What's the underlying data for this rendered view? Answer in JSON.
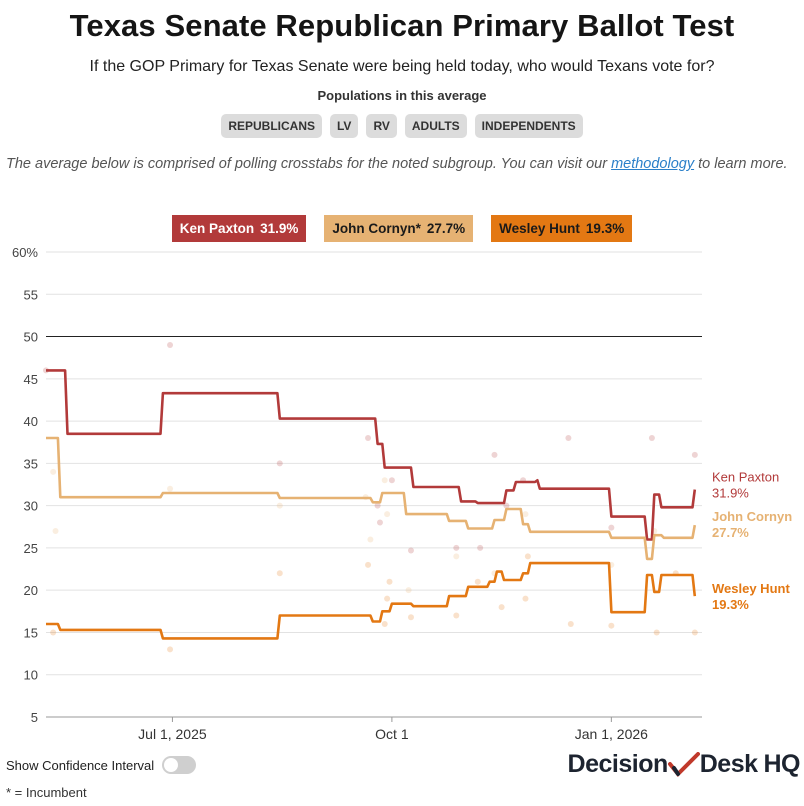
{
  "header": {
    "title": "Texas Senate Republican Primary Ballot Test",
    "subtitle": "If the GOP Primary for Texas Senate were being held today, who would Texans vote for?",
    "populations_label": "Populations in this average",
    "populations": [
      "REPUBLICANS",
      "LV",
      "RV",
      "ADULTS",
      "INDEPENDENTS"
    ]
  },
  "note": {
    "before": "The average below is comprised of polling crosstabs for the noted subgroup. You can visit our ",
    "link": "methodology",
    "after": " to learn more."
  },
  "legend": [
    {
      "name": "Ken Paxton",
      "value": "31.9%",
      "bg": "#b23a3a",
      "fg": "#ffffff"
    },
    {
      "name": "John Cornyn*",
      "value": "27.7%",
      "bg": "#e6b273",
      "fg": "#1a1a1a"
    },
    {
      "name": "Wesley Hunt",
      "value": "19.3%",
      "bg": "#e37813",
      "fg": "#1a1a1a"
    }
  ],
  "controls": {
    "ci_label": "Show Confidence Interval",
    "footnote": "* = Incumbent"
  },
  "brand": {
    "part1": "Decision",
    "part2": "Desk",
    "part3": "HQ"
  },
  "chart_data": {
    "type": "line",
    "y_ticks": [
      5,
      10,
      15,
      20,
      25,
      30,
      35,
      40,
      45,
      50,
      55,
      60
    ],
    "y_tick_labels": [
      "5",
      "10",
      "15",
      "20",
      "25",
      "30",
      "35",
      "40",
      "45",
      "50",
      "55",
      "60%"
    ],
    "ylim": [
      5,
      60
    ],
    "reference_line": 50,
    "x_domain": [
      "2025-05-09",
      "2026-02-08"
    ],
    "x_ticks": [
      {
        "date": "2025-07-01",
        "label": "Jul 1, 2025"
      },
      {
        "date": "2025-10-01",
        "label": "Oct 1"
      },
      {
        "date": "2026-01-01",
        "label": "Jan 1, 2026"
      }
    ],
    "series": [
      {
        "name": "Ken Paxton",
        "end_label": "Ken Paxton",
        "end_value": "31.9%",
        "color": "#b23a3a",
        "points": [
          [
            "2025-05-09",
            46
          ],
          [
            "2025-05-17",
            46
          ],
          [
            "2025-05-18",
            38.5
          ],
          [
            "2025-06-26",
            38.5
          ],
          [
            "2025-06-27",
            43.3
          ],
          [
            "2025-08-14",
            43.3
          ],
          [
            "2025-08-15",
            40.3
          ],
          [
            "2025-09-24",
            40.3
          ],
          [
            "2025-09-25",
            37.3
          ],
          [
            "2025-09-27",
            37.3
          ],
          [
            "2025-09-28",
            34.5
          ],
          [
            "2025-10-09",
            34.5
          ],
          [
            "2025-10-10",
            32.2
          ],
          [
            "2025-10-29",
            32.2
          ],
          [
            "2025-10-30",
            30.5
          ],
          [
            "2025-11-05",
            30.5
          ],
          [
            "2025-11-06",
            30.3
          ],
          [
            "2025-11-17",
            30.3
          ],
          [
            "2025-11-18",
            31.8
          ],
          [
            "2025-11-21",
            31.8
          ],
          [
            "2025-11-22",
            32.8
          ],
          [
            "2025-11-30",
            32.8
          ],
          [
            "2025-12-01",
            33
          ],
          [
            "2025-12-02",
            32
          ],
          [
            "2025-12-31",
            32
          ],
          [
            "2026-01-01",
            28.7
          ],
          [
            "2026-01-15",
            28.7
          ],
          [
            "2026-01-16",
            26
          ],
          [
            "2026-01-18",
            26
          ],
          [
            "2026-01-19",
            31.3
          ],
          [
            "2026-01-21",
            31.3
          ],
          [
            "2026-01-22",
            29.8
          ],
          [
            "2026-02-04",
            29.8
          ],
          [
            "2026-02-05",
            31.9
          ]
        ]
      },
      {
        "name": "John Cornyn*",
        "end_label": "John Cornyn",
        "end_value": "27.7%",
        "color": "#e6b273",
        "points": [
          [
            "2025-05-09",
            38
          ],
          [
            "2025-05-14",
            38
          ],
          [
            "2025-05-15",
            31
          ],
          [
            "2025-06-26",
            31
          ],
          [
            "2025-06-27",
            31.5
          ],
          [
            "2025-08-14",
            31.5
          ],
          [
            "2025-08-15",
            30.9
          ],
          [
            "2025-09-22",
            30.9
          ],
          [
            "2025-09-23",
            30.4
          ],
          [
            "2025-09-26",
            30.4
          ],
          [
            "2025-09-27",
            31.5
          ],
          [
            "2025-10-06",
            31.5
          ],
          [
            "2025-10-07",
            29
          ],
          [
            "2025-10-24",
            29
          ],
          [
            "2025-10-25",
            28.2
          ],
          [
            "2025-11-01",
            28.2
          ],
          [
            "2025-11-02",
            27.3
          ],
          [
            "2025-11-12",
            27.3
          ],
          [
            "2025-11-13",
            28.3
          ],
          [
            "2025-11-17",
            28.3
          ],
          [
            "2025-11-18",
            29.6
          ],
          [
            "2025-11-24",
            29.6
          ],
          [
            "2025-11-25",
            27.8
          ],
          [
            "2025-11-27",
            27.8
          ],
          [
            "2025-11-28",
            26.9
          ],
          [
            "2025-12-31",
            26.9
          ],
          [
            "2026-01-01",
            26.2
          ],
          [
            "2026-01-15",
            26.2
          ],
          [
            "2026-01-16",
            23.7
          ],
          [
            "2026-01-18",
            23.7
          ],
          [
            "2026-01-19",
            26.5
          ],
          [
            "2026-01-22",
            26.5
          ],
          [
            "2026-01-23",
            26.2
          ],
          [
            "2026-02-04",
            26.2
          ],
          [
            "2026-02-05",
            27.7
          ]
        ]
      },
      {
        "name": "Wesley Hunt",
        "end_label": "Wesley Hunt",
        "end_value": "19.3%",
        "color": "#e37813",
        "points": [
          [
            "2025-05-09",
            16
          ],
          [
            "2025-05-14",
            16
          ],
          [
            "2025-05-15",
            15.3
          ],
          [
            "2025-06-26",
            15.3
          ],
          [
            "2025-06-27",
            14.3
          ],
          [
            "2025-08-14",
            14.3
          ],
          [
            "2025-08-15",
            17
          ],
          [
            "2025-09-22",
            17
          ],
          [
            "2025-09-23",
            16.3
          ],
          [
            "2025-09-26",
            16.3
          ],
          [
            "2025-09-27",
            17.5
          ],
          [
            "2025-09-30",
            17.5
          ],
          [
            "2025-10-01",
            18.4
          ],
          [
            "2025-10-09",
            18.4
          ],
          [
            "2025-10-10",
            18.1
          ],
          [
            "2025-10-24",
            18.1
          ],
          [
            "2025-10-25",
            19.3
          ],
          [
            "2025-11-01",
            19.3
          ],
          [
            "2025-11-02",
            20.4
          ],
          [
            "2025-11-10",
            20.4
          ],
          [
            "2025-11-11",
            21
          ],
          [
            "2025-11-13",
            21
          ],
          [
            "2025-11-14",
            22.2
          ],
          [
            "2025-11-16",
            22.2
          ],
          [
            "2025-11-17",
            21.2
          ],
          [
            "2025-11-24",
            21.2
          ],
          [
            "2025-11-25",
            22
          ],
          [
            "2025-11-27",
            22
          ],
          [
            "2025-11-28",
            23.2
          ],
          [
            "2025-12-31",
            23.2
          ],
          [
            "2026-01-01",
            17.4
          ],
          [
            "2026-01-15",
            17.4
          ],
          [
            "2026-01-16",
            21.8
          ],
          [
            "2026-01-18",
            21.8
          ],
          [
            "2026-01-19",
            19.8
          ],
          [
            "2026-01-21",
            19.8
          ],
          [
            "2026-01-22",
            21.8
          ],
          [
            "2026-02-04",
            21.8
          ],
          [
            "2026-02-05",
            19.3
          ]
        ]
      }
    ],
    "polls": [
      [
        "2025-05-09",
        46,
        0
      ],
      [
        "2025-05-12",
        34,
        1
      ],
      [
        "2025-05-13",
        27,
        1
      ],
      [
        "2025-05-12",
        15,
        2
      ],
      [
        "2025-06-30",
        49,
        0
      ],
      [
        "2025-06-30",
        32,
        1
      ],
      [
        "2025-06-30",
        13,
        2
      ],
      [
        "2025-08-15",
        35,
        0
      ],
      [
        "2025-08-15",
        30,
        1
      ],
      [
        "2025-08-15",
        22,
        2
      ],
      [
        "2025-09-21",
        38,
        0
      ],
      [
        "2025-09-20",
        31,
        1
      ],
      [
        "2025-09-22",
        26,
        1
      ],
      [
        "2025-09-21",
        23,
        2
      ],
      [
        "2025-09-25",
        30,
        0
      ],
      [
        "2025-09-26",
        28,
        0
      ],
      [
        "2025-09-28",
        33,
        1
      ],
      [
        "2025-09-29",
        29,
        1
      ],
      [
        "2025-09-29",
        19,
        2
      ],
      [
        "2025-09-30",
        21,
        2
      ],
      [
        "2025-10-01",
        33,
        0
      ],
      [
        "2025-09-28",
        16,
        2
      ],
      [
        "2025-10-09",
        24.7,
        0
      ],
      [
        "2025-10-08",
        20,
        1
      ],
      [
        "2025-10-09",
        16.8,
        2
      ],
      [
        "2025-10-28",
        25,
        0
      ],
      [
        "2025-10-28",
        24,
        1
      ],
      [
        "2025-10-28",
        17,
        2
      ],
      [
        "2025-11-07",
        25,
        0
      ],
      [
        "2025-11-06",
        21,
        2
      ],
      [
        "2025-11-13",
        36,
        0
      ],
      [
        "2025-11-13",
        22,
        1
      ],
      [
        "2025-11-16",
        18,
        2
      ],
      [
        "2025-11-18",
        30,
        0
      ],
      [
        "2025-11-25",
        33,
        0
      ],
      [
        "2025-11-26",
        29,
        1
      ],
      [
        "2025-11-26",
        19,
        2
      ],
      [
        "2025-11-27",
        24,
        2
      ],
      [
        "2025-12-14",
        38,
        0
      ],
      [
        "2025-12-15",
        16,
        2
      ],
      [
        "2026-01-01",
        27.4,
        0
      ],
      [
        "2026-01-01",
        23,
        1
      ],
      [
        "2026-01-01",
        15.8,
        2
      ],
      [
        "2026-01-18",
        38,
        0
      ],
      [
        "2026-01-19",
        27,
        1
      ],
      [
        "2026-01-20",
        15,
        2
      ],
      [
        "2026-02-05",
        36,
        0
      ],
      [
        "2026-02-05",
        15,
        2
      ],
      [
        "2026-01-28",
        22,
        2
      ]
    ]
  }
}
